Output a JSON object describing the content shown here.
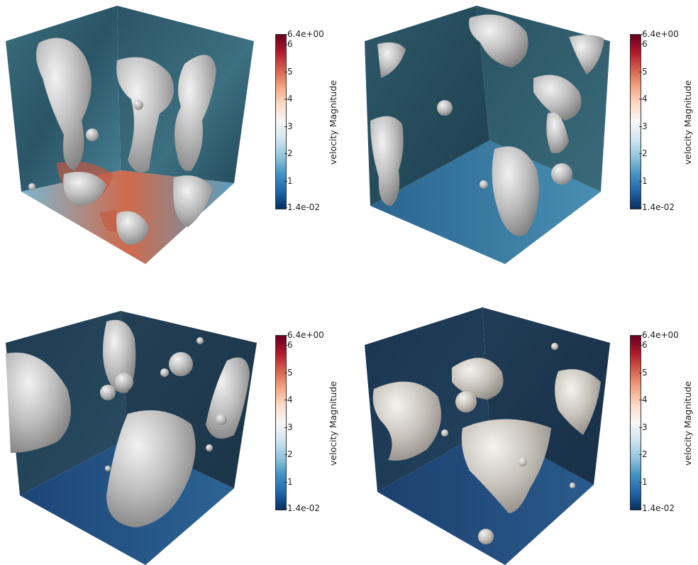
{
  "colorbar": {
    "title": "velocity Magnitude",
    "max_label": "6.4e+00",
    "min_label": "1.4e-02",
    "ticks": [
      "6",
      "5",
      "4",
      "3",
      "2",
      "1"
    ],
    "gradient": [
      "#67001f",
      "#b2182b",
      "#d6604d",
      "#f4a582",
      "#fddbc7",
      "#f7f7f7",
      "#d1e5f0",
      "#92c5de",
      "#4393c3",
      "#2166ac",
      "#053061"
    ]
  },
  "panels": [
    {
      "id": "panel-1",
      "surface_color": "#bdbdbd",
      "wall_color": "#2f5a6a",
      "floor_color": "#4f8fb0",
      "hot_color": "#c4573f"
    },
    {
      "id": "panel-2",
      "surface_color": "#bdbdbd",
      "wall_color": "#254b5a",
      "floor_color": "#2f6a93",
      "hot_color": "#3d7aa0"
    },
    {
      "id": "panel-3",
      "surface_color": "#bdbdbd",
      "wall_color": "#1e3a52",
      "floor_color": "#214f80",
      "hot_color": "#2f6594"
    },
    {
      "id": "panel-4",
      "surface_color": "#bdbdbd",
      "wall_color": "#1a3550",
      "floor_color": "#1f4777",
      "hot_color": "#2b5b8c"
    }
  ]
}
